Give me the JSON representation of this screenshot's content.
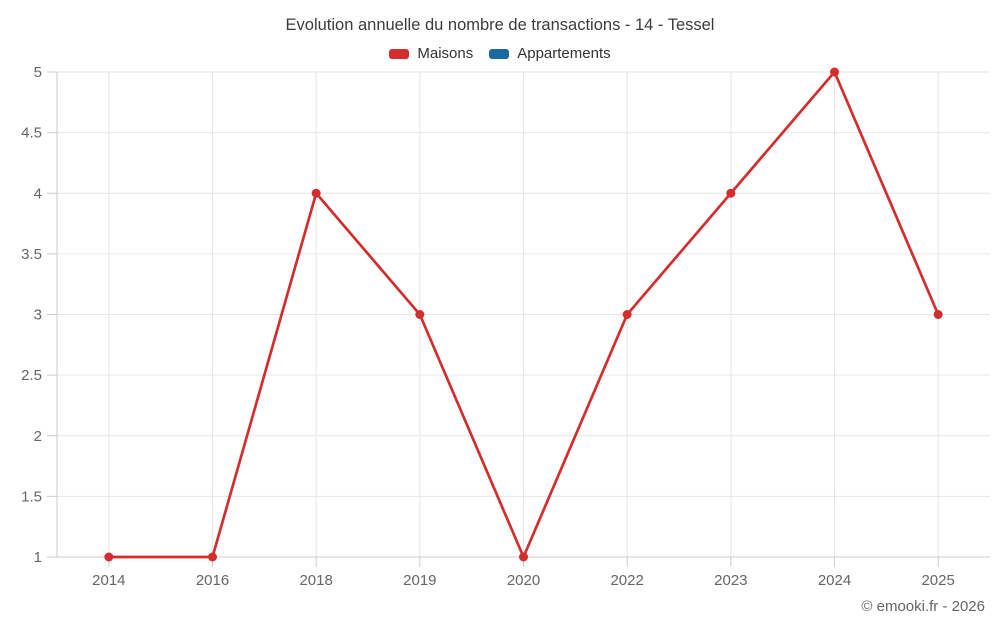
{
  "title": "Evolution annuelle du nombre de transactions - 14 - Tessel",
  "legend": [
    {
      "label": "Maisons",
      "color": "#d32d2d"
    },
    {
      "label": "Appartements",
      "color": "#17699e"
    }
  ],
  "footer": {
    "credit": "© emooki.fr - 2026"
  },
  "colors": {
    "gridline": "#e6e6e6",
    "axis_line": "#cccccc",
    "tick": "#cccccc",
    "tick_label": "#666666",
    "title_text": "#3c3c3c",
    "background": "#ffffff"
  },
  "chart_data": {
    "type": "line",
    "title": "Evolution annuelle du nombre de transactions - 14 - Tessel",
    "categories": [
      "2014",
      "2016",
      "2018",
      "2019",
      "2020",
      "2022",
      "2023",
      "2024",
      "2025"
    ],
    "series": [
      {
        "name": "Maisons",
        "color": "#d32d2d",
        "values": [
          1,
          1,
          4,
          3,
          1,
          3,
          4,
          5,
          3
        ]
      },
      {
        "name": "Appartements",
        "color": "#17699e",
        "values": []
      }
    ],
    "xlabel": "",
    "ylabel": "",
    "ylim": [
      1,
      5
    ],
    "yticks": [
      1,
      1.5,
      2,
      2.5,
      3,
      3.5,
      4,
      4.5,
      5
    ],
    "grid": true,
    "legend_position": "top"
  }
}
